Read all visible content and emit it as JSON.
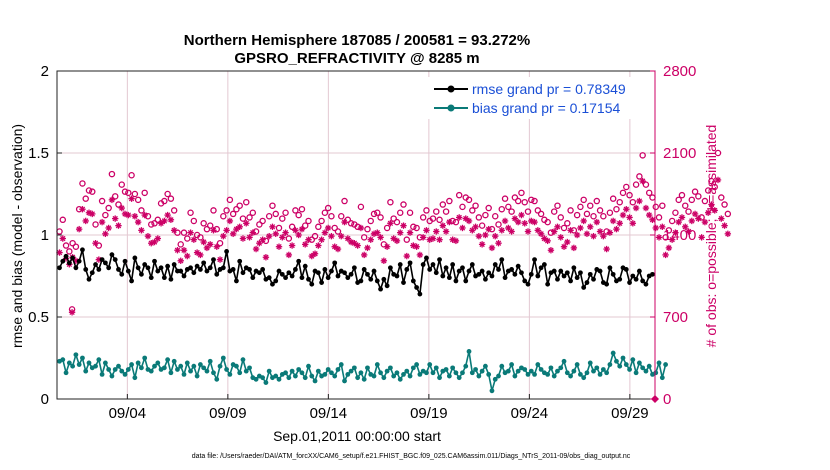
{
  "chart_data": {
    "type": "line",
    "title": "Northern Hemisphere 187085 / 200581 = 93.272%",
    "subtitle": "GPSRO_REFRACTIVITY @ 8285 m",
    "xlabel": "Sep.01,2011 00:00:00 start",
    "ylabel_left": "rmse and bias (model - observation)",
    "ylabel_right": "# of obs: o=possible; ∗=assimilated",
    "footnote": "data file: /Users/raeder/DAI/ATM_forcXX/CAM6_setup/f.e21.FHIST_BGC.f09_025.CAM6assim.011/Diags_NTrS_2011-09/obs_diag_output.nc",
    "x_ticks": [
      {
        "label": "09/04",
        "day": 3.5
      },
      {
        "label": "09/09",
        "day": 8.5
      },
      {
        "label": "09/14",
        "day": 13.5
      },
      {
        "label": "09/19",
        "day": 18.5
      },
      {
        "label": "09/24",
        "day": 23.5
      },
      {
        "label": "09/29",
        "day": 28.5
      }
    ],
    "xlim": [
      0,
      29.75
    ],
    "ylim_left": [
      0,
      2
    ],
    "yticks_left": [
      "0",
      "0.5",
      "1",
      "1.5",
      "2"
    ],
    "ylim_right": [
      0,
      2800
    ],
    "yticks_right": [
      "0",
      "700",
      "1400",
      "2100",
      "2800"
    ],
    "series": [
      {
        "name": "rmse",
        "legend": "rmse grand pr = 0.78349",
        "color": "#000000",
        "marker": "dot-filled",
        "values": [
          0.8,
          0.84,
          0.87,
          0.83,
          0.86,
          0.8,
          0.84,
          0.91,
          0.79,
          0.73,
          0.77,
          0.82,
          0.79,
          0.85,
          0.83,
          0.8,
          0.88,
          0.85,
          0.79,
          0.76,
          0.84,
          0.78,
          0.72,
          0.86,
          0.8,
          0.76,
          0.82,
          0.8,
          0.74,
          0.84,
          0.78,
          0.8,
          0.74,
          0.81,
          0.73,
          0.82,
          0.78,
          0.78,
          0.75,
          0.79,
          0.8,
          0.77,
          0.81,
          0.79,
          0.83,
          0.78,
          0.8,
          0.85,
          0.76,
          0.79,
          0.8,
          0.9,
          0.78,
          0.79,
          0.72,
          0.84,
          0.77,
          0.8,
          0.79,
          0.74,
          0.78,
          0.77,
          0.79,
          0.73,
          0.74,
          0.7,
          0.72,
          0.78,
          0.76,
          0.74,
          0.77,
          0.75,
          0.79,
          0.84,
          0.74,
          0.81,
          0.73,
          0.7,
          0.78,
          0.77,
          0.71,
          0.79,
          0.74,
          0.78,
          0.83,
          0.75,
          0.78,
          0.77,
          0.74,
          0.76,
          0.8,
          0.71,
          0.72,
          0.79,
          0.76,
          0.73,
          0.78,
          0.72,
          0.67,
          0.73,
          0.69,
          0.8,
          0.76,
          0.75,
          0.82,
          0.71,
          0.79,
          0.83,
          0.72,
          0.68,
          0.64,
          0.82,
          0.86,
          0.79,
          0.82,
          0.77,
          0.85,
          0.75,
          0.8,
          0.74,
          0.82,
          0.72,
          0.78,
          0.8,
          0.72,
          0.78,
          0.82,
          0.75,
          0.76,
          0.78,
          0.73,
          0.77,
          0.75,
          0.82,
          0.79,
          0.85,
          0.74,
          0.78,
          0.79,
          0.76,
          0.81,
          0.77,
          0.72,
          0.7,
          0.76,
          0.85,
          0.75,
          0.8,
          0.82,
          0.7,
          0.77,
          0.78,
          0.73,
          0.78,
          0.75,
          0.77,
          0.72,
          0.8,
          0.74,
          0.77,
          0.68,
          0.71,
          0.76,
          0.73,
          0.79,
          0.78,
          0.71,
          0.7,
          0.8,
          0.76,
          0.72,
          0.73,
          0.8,
          0.79,
          0.71,
          0.75,
          0.73,
          0.78,
          0.72,
          0.7,
          0.75,
          0.76
        ]
      },
      {
        "name": "bias",
        "legend": "bias grand pr = 0.17154",
        "color": "#0a7a78",
        "marker": "dot-filled",
        "values": [
          0.23,
          0.24,
          0.16,
          0.22,
          0.2,
          0.27,
          0.21,
          0.25,
          0.17,
          0.22,
          0.19,
          0.2,
          0.24,
          0.15,
          0.22,
          0.18,
          0.14,
          0.18,
          0.2,
          0.17,
          0.15,
          0.18,
          0.21,
          0.13,
          0.22,
          0.19,
          0.25,
          0.18,
          0.17,
          0.2,
          0.22,
          0.18,
          0.19,
          0.24,
          0.16,
          0.23,
          0.18,
          0.2,
          0.15,
          0.22,
          0.17,
          0.2,
          0.14,
          0.21,
          0.19,
          0.17,
          0.23,
          0.16,
          0.12,
          0.2,
          0.25,
          0.18,
          0.15,
          0.21,
          0.2,
          0.16,
          0.24,
          0.17,
          0.19,
          0.13,
          0.12,
          0.14,
          0.13,
          0.1,
          0.17,
          0.13,
          0.14,
          0.12,
          0.15,
          0.16,
          0.13,
          0.17,
          0.14,
          0.18,
          0.16,
          0.13,
          0.2,
          0.14,
          0.11,
          0.17,
          0.14,
          0.15,
          0.18,
          0.16,
          0.14,
          0.18,
          0.21,
          0.11,
          0.15,
          0.17,
          0.19,
          0.13,
          0.16,
          0.12,
          0.19,
          0.15,
          0.14,
          0.21,
          0.16,
          0.13,
          0.17,
          0.19,
          0.14,
          0.16,
          0.12,
          0.15,
          0.17,
          0.14,
          0.19,
          0.21,
          0.15,
          0.17,
          0.16,
          0.21,
          0.16,
          0.19,
          0.13,
          0.17,
          0.18,
          0.14,
          0.19,
          0.16,
          0.13,
          0.16,
          0.2,
          0.29,
          0.16,
          0.18,
          0.14,
          0.17,
          0.2,
          0.15,
          0.05,
          0.12,
          0.14,
          0.2,
          0.16,
          0.17,
          0.21,
          0.14,
          0.17,
          0.19,
          0.18,
          0.15,
          0.17,
          0.15,
          0.21,
          0.18,
          0.16,
          0.15,
          0.19,
          0.14,
          0.17,
          0.19,
          0.23,
          0.16,
          0.14,
          0.17,
          0.21,
          0.15,
          0.13,
          0.16,
          0.22,
          0.17,
          0.19,
          0.15,
          0.18,
          0.16,
          0.21,
          0.28,
          0.23,
          0.2,
          0.25,
          0.21,
          0.18,
          0.24,
          0.16,
          0.22,
          0.19,
          0.17,
          0.2,
          0.15,
          0.16,
          0.22,
          0.13,
          0.21
        ]
      },
      {
        "name": "possible",
        "color": "#cc0066",
        "marker": "open-circle",
        "axis": "right",
        "values": [
          1430,
          1530,
          1310,
          1260,
          1330,
          1300,
          1620,
          1840,
          1710,
          1780,
          1770,
          1490,
          1310,
          1690,
          1570,
          1630,
          1920,
          1730,
          1660,
          1830,
          1770,
          1760,
          1910,
          1750,
          1700,
          1610,
          1760,
          1560,
          1490,
          1500,
          1530,
          1670,
          1690,
          1750,
          1710,
          1610,
          1420,
          1320,
          1420,
          1370,
          1590,
          1520,
          1400,
          1380,
          1500,
          1450,
          1480,
          1610,
          1450,
          1330,
          1560,
          1610,
          1700,
          1580,
          1620,
          1650,
          1540,
          1680,
          1550,
          1590,
          1430,
          1490,
          1520,
          1350,
          1560,
          1650,
          1580,
          1460,
          1540,
          1590,
          1370,
          1470,
          1610,
          1570,
          1620,
          1480,
          1520,
          1360,
          1390,
          1470,
          1520,
          1590,
          1630,
          1560,
          1460,
          1430,
          1560,
          1690,
          1530,
          1500,
          1490,
          1470,
          1640,
          1380,
          1450,
          1520,
          1580,
          1590,
          1550,
          1320,
          1460,
          1680,
          1540,
          1510,
          1590,
          1660,
          1360,
          1590,
          1470,
          1460,
          1380,
          1550,
          1610,
          1520,
          1540,
          1600,
          1530,
          1660,
          1600,
          1690,
          1520,
          1510,
          1740,
          1640,
          1720,
          1700,
          1610,
          1650,
          1550,
          1480,
          1570,
          1630,
          1450,
          1560,
          1490,
          1620,
          1710,
          1640,
          1600,
          1720,
          1690,
          1760,
          1680,
          1600,
          1700,
          1690,
          1610,
          1580,
          1530,
          1510,
          1420,
          1600,
          1650,
          1550,
          1460,
          1500,
          1610,
          1440,
          1570,
          1640,
          1700,
          1580,
          1650,
          1560,
          1690,
          1610,
          1560,
          1430,
          1590,
          1710,
          1620,
          1680,
          1760,
          1810,
          1740,
          1680,
          1830,
          1900,
          2080,
          1830,
          1760,
          1720,
          1640,
          1550,
          1650,
          1380,
          1440,
          1520,
          1590,
          1700,
          1740,
          1650,
          1600,
          1700,
          1770,
          1730,
          1550,
          1690,
          1780,
          1860,
          1810,
          2100,
          1720,
          1660,
          1580
        ]
      },
      {
        "name": "assimilated",
        "color": "#cc0066",
        "marker": "asterisk",
        "axis": "right",
        "values": [
          1250,
          1370,
          1200,
          1150,
          1210,
          1180,
          1450,
          1620,
          1520,
          1590,
          1580,
          1330,
          1190,
          1510,
          1410,
          1460,
          1700,
          1540,
          1480,
          1630,
          1580,
          1570,
          1710,
          1560,
          1510,
          1440,
          1570,
          1390,
          1330,
          1340,
          1370,
          1500,
          1520,
          1570,
          1530,
          1440,
          1270,
          1180,
          1270,
          1220,
          1420,
          1360,
          1250,
          1230,
          1340,
          1290,
          1320,
          1440,
          1300,
          1190,
          1390,
          1440,
          1520,
          1410,
          1450,
          1470,
          1370,
          1500,
          1380,
          1420,
          1280,
          1330,
          1360,
          1210,
          1390,
          1470,
          1410,
          1300,
          1380,
          1420,
          1230,
          1310,
          1440,
          1400,
          1450,
          1320,
          1360,
          1220,
          1240,
          1310,
          1360,
          1420,
          1460,
          1390,
          1300,
          1280,
          1390,
          1510,
          1370,
          1340,
          1330,
          1310,
          1460,
          1230,
          1290,
          1360,
          1410,
          1420,
          1380,
          1180,
          1300,
          1500,
          1370,
          1350,
          1420,
          1480,
          1220,
          1420,
          1310,
          1300,
          1230,
          1380,
          1440,
          1360,
          1370,
          1430,
          1360,
          1480,
          1430,
          1510,
          1360,
          1350,
          1550,
          1460,
          1540,
          1520,
          1440,
          1470,
          1390,
          1320,
          1400,
          1450,
          1290,
          1390,
          1330,
          1440,
          1520,
          1460,
          1430,
          1540,
          1510,
          1570,
          1500,
          1430,
          1520,
          1510,
          1440,
          1410,
          1370,
          1350,
          1270,
          1430,
          1470,
          1380,
          1300,
          1340,
          1440,
          1290,
          1400,
          1460,
          1520,
          1410,
          1470,
          1390,
          1510,
          1430,
          1390,
          1280,
          1420,
          1520,
          1450,
          1500,
          1570,
          1620,
          1550,
          1500,
          1630,
          1690,
          1860,
          1630,
          1570,
          1530,
          1460,
          1380,
          1470,
          1230,
          1290,
          1360,
          1420,
          1510,
          1550,
          1470,
          1430,
          1520,
          1580,
          1540,
          1380,
          1510,
          1590,
          1660,
          1610,
          1870,
          1540,
          1480,
          1410
        ]
      }
    ],
    "extra_points": [
      {
        "series": "possible",
        "note": "outlier near 09/01",
        "day": 0.75,
        "value": 765
      },
      {
        "series": "assimilated",
        "note": "outlier near 09/01",
        "day": 0.75,
        "value": 740
      }
    ]
  }
}
